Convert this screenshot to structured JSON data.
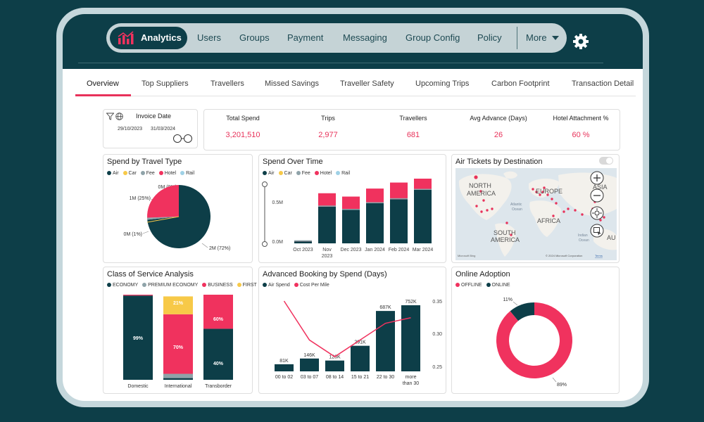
{
  "nav": {
    "active": "Analytics",
    "items": [
      "Users",
      "Groups",
      "Payment",
      "Messaging",
      "Group Config",
      "Policy"
    ],
    "more": "More",
    "icon": "bar-chart-icon"
  },
  "tabs": [
    "Overview",
    "Top Suppliers",
    "Travellers",
    "Missed Savings",
    "Traveller Safety",
    "Upcoming Trips",
    "Carbon Footprint",
    "Transaction Detail"
  ],
  "filter": {
    "title": "Invoice Date",
    "start": "29/10/2023",
    "end": "31/03/2024"
  },
  "kpis": [
    {
      "label": "Total Spend",
      "value": "3,201,510"
    },
    {
      "label": "Trips",
      "value": "2,977"
    },
    {
      "label": "Travellers",
      "value": "681"
    },
    {
      "label": "Avg Advance (Days)",
      "value": "26"
    },
    {
      "label": "Hotel Attachment %",
      "value": "60 %"
    }
  ],
  "colors": {
    "air": "#0d3e48",
    "car": "#f7c948",
    "fee": "#8fa3a9",
    "hotel": "#f0325e",
    "rail": "#9fd1e6",
    "accent": "#e8325a",
    "navy": "#0d3e48"
  },
  "spend_by_type": {
    "title": "Spend by Travel Type",
    "legend": [
      "Air",
      "Car",
      "Fee",
      "Hotel",
      "Rail"
    ],
    "labels": {
      "top": "0M (0%)",
      "hotel": "1M (25%)",
      "fee": "0M (1%)",
      "air": "2M (72%)"
    }
  },
  "spend_over_time": {
    "title": "Spend Over Time",
    "legend": [
      "Air",
      "Car",
      "Fee",
      "Hotel",
      "Rail"
    ],
    "y_ticks": [
      "0.5M",
      "0.0M"
    ]
  },
  "air_tickets": {
    "title": "Air Tickets by Destination",
    "labels": [
      "NORTH",
      "AMERICA",
      "EUROPE",
      "ASIA",
      "AFRICA",
      "SOUTH",
      "AMERICA",
      "AU"
    ],
    "ocean_labels": [
      "Atlantic",
      "Ocean",
      "Indian",
      "Ocean"
    ],
    "credit": "© 2024 Microsoft Corporation",
    "terms": "Terms",
    "brand": "Microsoft Bing"
  },
  "class_of_service": {
    "title": "Class of Service Analysis",
    "legend": [
      "ECONOMY",
      "PREMIUM ECONOMY",
      "BUSINESS",
      "FIRST"
    ]
  },
  "advanced_booking": {
    "title": "Advanced Booking by Spend (Days)",
    "legend": [
      "Air Spend",
      "Cost Per Mile"
    ],
    "right_ticks": [
      "0.35",
      "0.30",
      "0.25"
    ]
  },
  "online_adoption": {
    "title": "Online Adoption",
    "legend": [
      "OFFLINE",
      "ONLINE"
    ],
    "labels": {
      "online": "11%",
      "offline": "89%"
    }
  },
  "chart_data": [
    {
      "type": "pie",
      "title": "Spend by Travel Type",
      "categories": [
        "Air",
        "Car",
        "Fee",
        "Hotel",
        "Rail"
      ],
      "values": [
        72,
        0,
        1,
        25,
        0
      ],
      "labels": [
        "2M (72%)",
        "",
        "0M (1%)",
        "1M (25%)",
        "0M (0%)"
      ]
    },
    {
      "type": "bar",
      "title": "Spend Over Time",
      "categories": [
        "Oct 2023",
        "Nov 2023",
        "Dec 2023",
        "Jan 2024",
        "Feb 2024",
        "Mar 2024"
      ],
      "series": [
        {
          "name": "Air",
          "values": [
            0.03,
            0.55,
            0.5,
            0.6,
            0.66,
            0.8
          ]
        },
        {
          "name": "Hotel",
          "values": [
            0.01,
            0.2,
            0.2,
            0.22,
            0.25,
            0.24
          ]
        }
      ],
      "ylim": [
        0,
        1.0
      ]
    },
    {
      "type": "bar",
      "title": "Class of Service Analysis",
      "categories": [
        "Domestic",
        "International",
        "Transborder"
      ],
      "series": [
        {
          "name": "ECONOMY",
          "values": [
            99,
            2,
            60
          ]
        },
        {
          "name": "PREMIUM ECONOMY",
          "values": [
            0,
            5,
            0
          ]
        },
        {
          "name": "BUSINESS",
          "values": [
            1,
            70,
            40
          ]
        },
        {
          "name": "FIRST",
          "values": [
            0,
            21,
            0
          ]
        }
      ],
      "bar_labels": [
        [
          "99%"
        ],
        [
          "21%",
          "70%"
        ],
        [
          "60%",
          "40%"
        ]
      ]
    },
    {
      "type": "bar",
      "title": "Advanced Booking by Spend (Days)",
      "categories": [
        "00 to 02",
        "03 to 07",
        "08 to 14",
        "15 to 21",
        "22 to 30",
        "more than 30"
      ],
      "series": [
        {
          "name": "Air Spend",
          "values": [
            81,
            146,
            123,
            291,
            687,
            752
          ],
          "labels": [
            "81K",
            "146K",
            "123K",
            "291K",
            "687K",
            "752K"
          ]
        },
        {
          "name": "Cost Per Mile",
          "values": [
            0.36,
            0.29,
            0.26,
            0.29,
            0.32,
            0.33
          ]
        }
      ],
      "ylim_right": [
        0.24,
        0.36
      ]
    },
    {
      "type": "pie",
      "title": "Online Adoption",
      "categories": [
        "OFFLINE",
        "ONLINE"
      ],
      "values": [
        89,
        11
      ]
    }
  ]
}
